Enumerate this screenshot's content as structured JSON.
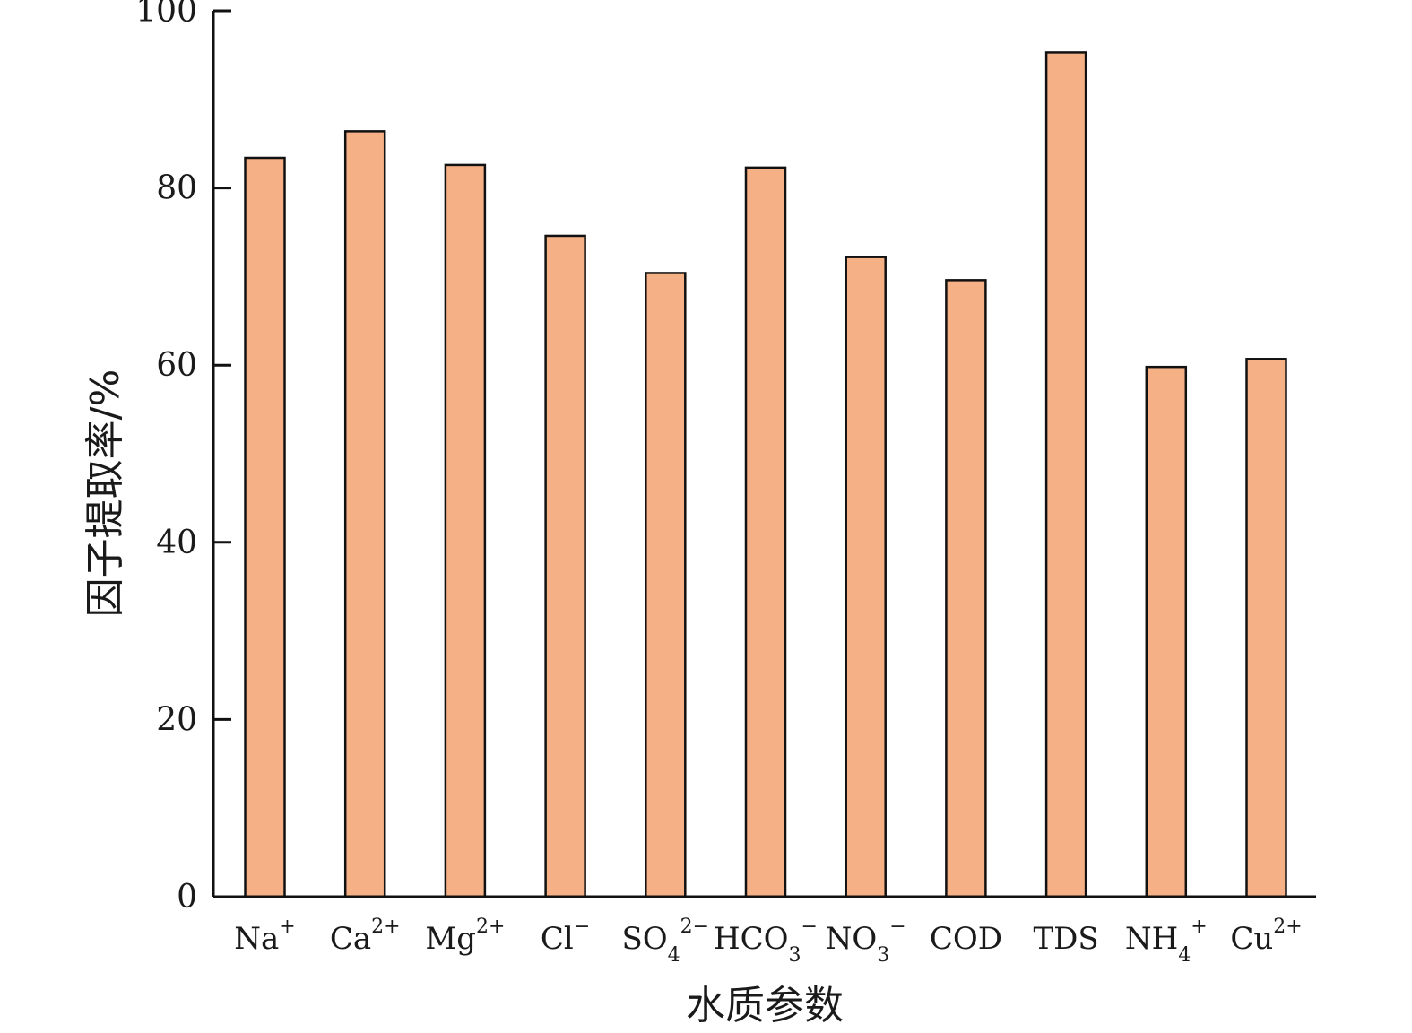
{
  "chart_data": {
    "type": "bar",
    "title": "",
    "xlabel": "水质参数",
    "ylabel": "因子提取率/%",
    "ylim": [
      0,
      100
    ],
    "yticks": [
      0,
      20,
      40,
      60,
      80,
      100
    ],
    "grid": false,
    "categories": [
      "Na+",
      "Ca2+",
      "Mg2+",
      "Cl−",
      "SO42−",
      "HCO3−",
      "NO3−",
      "COD",
      "TDS",
      "NH4+",
      "Cu2+"
    ],
    "category_parts": [
      {
        "base": "Na",
        "sub": "",
        "sup": "+"
      },
      {
        "base": "Ca",
        "sub": "",
        "sup": "2+"
      },
      {
        "base": "Mg",
        "sub": "",
        "sup": "2+"
      },
      {
        "base": "Cl",
        "sub": "",
        "sup": "−"
      },
      {
        "base": "SO",
        "sub": "4",
        "sup": "2−"
      },
      {
        "base": "HCO",
        "sub": "3",
        "sup": "−"
      },
      {
        "base": "NO",
        "sub": "3",
        "sup": "−"
      },
      {
        "base": "COD",
        "sub": "",
        "sup": ""
      },
      {
        "base": "TDS",
        "sub": "",
        "sup": ""
      },
      {
        "base": "NH",
        "sub": "4",
        "sup": "+"
      },
      {
        "base": "Cu",
        "sub": "",
        "sup": "2+"
      }
    ],
    "values": [
      83.4,
      86.4,
      82.6,
      74.6,
      70.4,
      82.3,
      72.2,
      69.6,
      95.3,
      59.8,
      60.7
    ],
    "bar_color": "#f5b185",
    "bar_stroke": "#111111"
  }
}
